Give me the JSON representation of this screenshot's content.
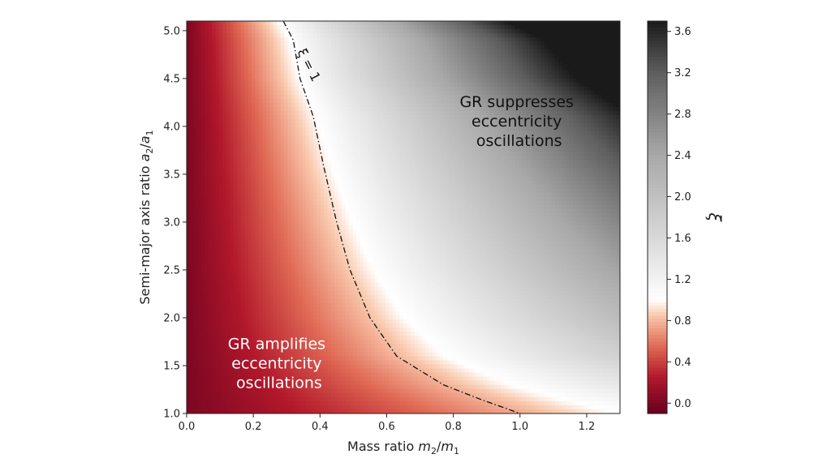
{
  "chart_data": {
    "type": "heatmap",
    "xlabel": {
      "prefix": "Mass ratio ",
      "num": "m",
      "num_sub": "2",
      "slash": "/",
      "den": "m",
      "den_sub": "1"
    },
    "ylabel": {
      "prefix": "Semi-major axis ratio ",
      "num": "a",
      "num_sub": "2",
      "slash": "/",
      "den": "a",
      "den_sub": "1"
    },
    "xlim": [
      0.0,
      1.3
    ],
    "ylim": [
      1.0,
      5.1
    ],
    "x_ticks": [
      0.0,
      0.2,
      0.4,
      0.6,
      0.8,
      1.0,
      1.2
    ],
    "x_tick_labels": [
      "0.0",
      "0.2",
      "0.4",
      "0.6",
      "0.8",
      "1.0",
      "1.2"
    ],
    "y_ticks": [
      1.0,
      1.5,
      2.0,
      2.5,
      3.0,
      3.5,
      4.0,
      4.5,
      5.0
    ],
    "y_tick_labels": [
      "1.0",
      "1.5",
      "2.0",
      "2.5",
      "3.0",
      "3.5",
      "4.0",
      "4.5",
      "5.0"
    ],
    "colorbar": {
      "label": "ξ",
      "range": [
        -0.1,
        3.7
      ],
      "ticks": [
        0.0,
        0.4,
        0.8,
        1.2,
        1.6,
        2.0,
        2.4,
        2.8,
        3.2,
        3.6
      ],
      "tick_labels": [
        "0.0",
        "0.4",
        "0.8",
        "1.2",
        "1.6",
        "2.0",
        "2.4",
        "2.8",
        "3.2",
        "3.6"
      ],
      "colormap": "RdGy_r",
      "low_color": "#a50f2a",
      "mid_color": "#ffffff",
      "high_color": "#1a1a1a"
    },
    "contour": {
      "label": "ξ = 1",
      "level": 1.0,
      "style": "dash-dot",
      "points": [
        [
          0.29,
          5.1
        ],
        [
          0.32,
          4.9
        ],
        [
          0.34,
          4.5
        ],
        [
          0.38,
          4.1
        ],
        [
          0.41,
          3.6
        ],
        [
          0.45,
          3.0
        ],
        [
          0.49,
          2.5
        ],
        [
          0.55,
          2.0
        ],
        [
          0.63,
          1.6
        ],
        [
          0.77,
          1.3
        ],
        [
          0.88,
          1.15
        ],
        [
          1.0,
          1.0
        ]
      ]
    },
    "annotations": [
      {
        "lines": [
          "GR suppresses",
          "eccentricity",
          " oscillations"
        ],
        "x": 0.99,
        "y": 4.0,
        "color": "#111111"
      },
      {
        "lines": [
          "GR amplifies",
          "eccentricity",
          " oscillations"
        ],
        "x": 0.27,
        "y": 1.47,
        "color": "#ffffff"
      }
    ]
  }
}
